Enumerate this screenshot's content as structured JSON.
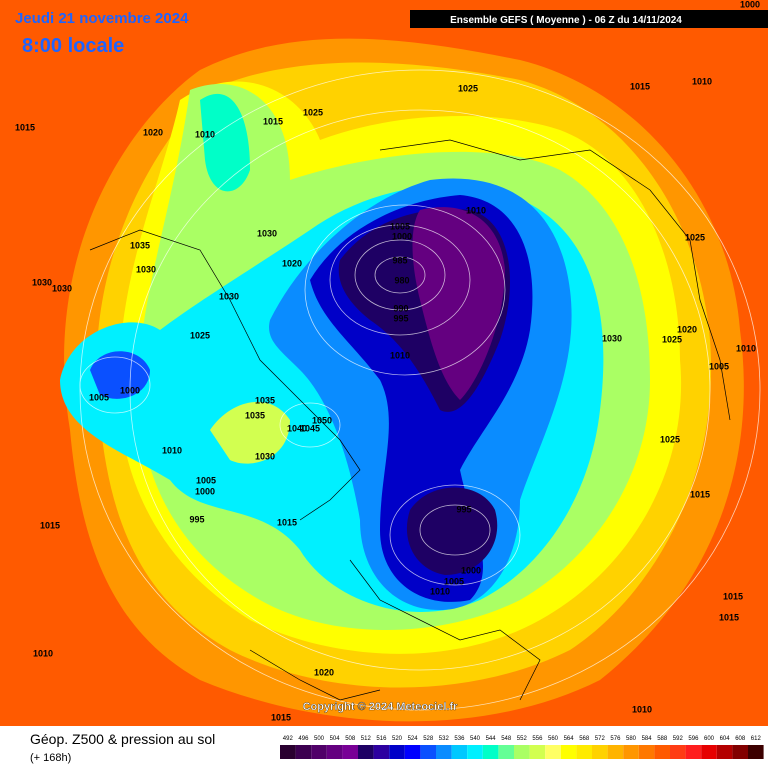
{
  "header": {
    "date": "Jeudi 21 novembre 2024",
    "time": "8:00 locale",
    "run": "Ensemble GEFS  ( Moyenne )  -  06 Z du 14/11/2024"
  },
  "copyright": "Copyright © 2024 Meteociel.fr",
  "footer": {
    "title": "Géop. Z500 & pression au sol",
    "lead": "(+ 168h)"
  },
  "legend": {
    "values": [
      492,
      496,
      500,
      504,
      508,
      512,
      516,
      520,
      524,
      528,
      532,
      536,
      540,
      544,
      548,
      552,
      556,
      560,
      564,
      568,
      572,
      576,
      580,
      584,
      588,
      592,
      596,
      600,
      604,
      608,
      612
    ],
    "colors": [
      "#2a0030",
      "#3c0050",
      "#500068",
      "#640080",
      "#780096",
      "#1e0064",
      "#2d00a0",
      "#0000c8",
      "#0000ff",
      "#0a50ff",
      "#0a8cff",
      "#00c8ff",
      "#00f0ff",
      "#00ffc8",
      "#64ff96",
      "#aaff64",
      "#d2ff50",
      "#ffff64",
      "#ffff00",
      "#ffeb00",
      "#ffd200",
      "#ffb400",
      "#ff9600",
      "#ff7800",
      "#ff5a00",
      "#ff3c14",
      "#ff1e1e",
      "#e60000",
      "#b40000",
      "#820000",
      "#3c0000"
    ]
  },
  "pressure_labels": [
    1000,
    1010,
    1015,
    1025,
    1025,
    1015,
    1010,
    1020,
    1015,
    1010,
    1005,
    1000,
    985,
    980,
    990,
    995,
    1030,
    1035,
    1030,
    1020,
    1030,
    1030,
    1030,
    1025,
    1010,
    1030,
    1025,
    1020,
    1025,
    1010,
    1005,
    1000,
    1005,
    1035,
    1035,
    1050,
    1040,
    1045,
    1025,
    1010,
    1030,
    1005,
    1000,
    1015,
    995,
    995,
    1015,
    1015,
    1000,
    1005,
    1010,
    1015,
    1015,
    1010,
    1020,
    1010,
    1015
  ]
}
